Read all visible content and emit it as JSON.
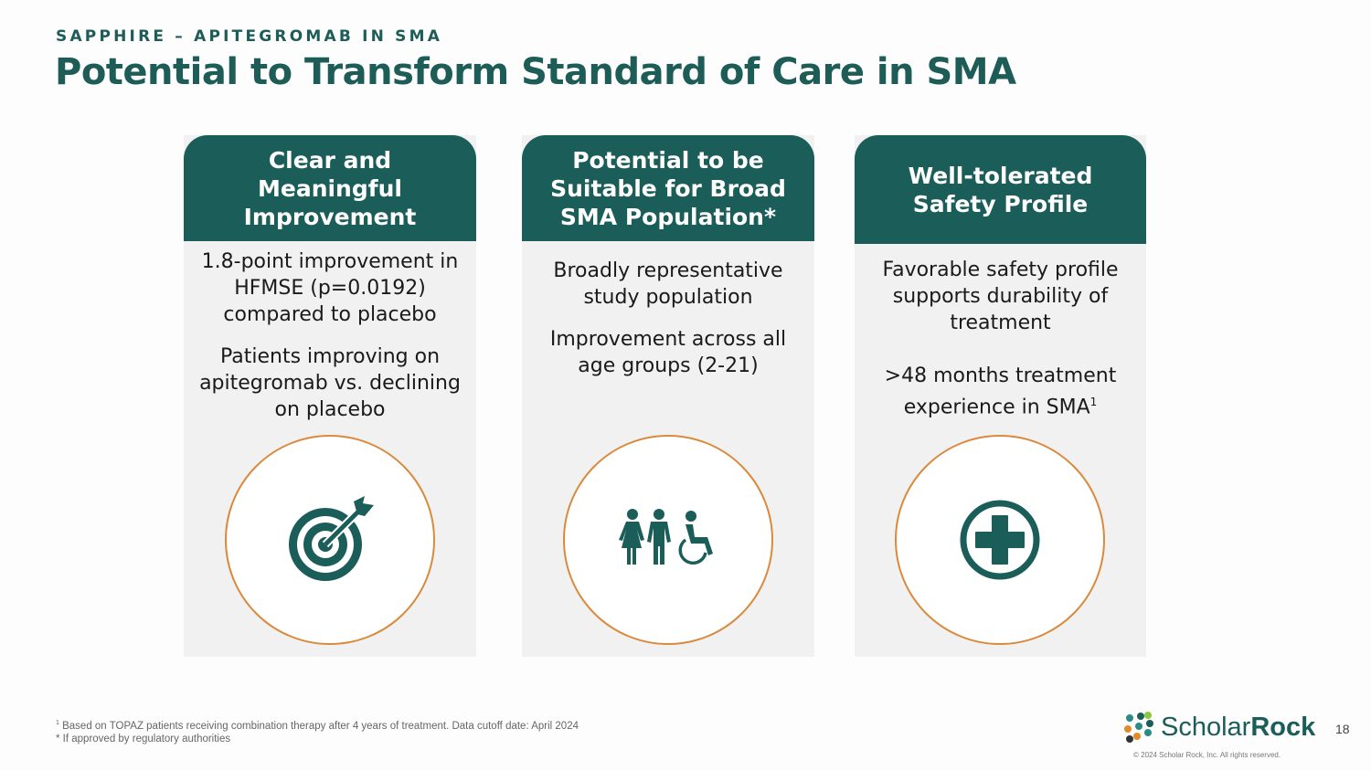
{
  "header": {
    "eyebrow": "SAPPHIRE – APITEGROMAB IN SMA",
    "title": "Potential to Transform Standard of Care in SMA"
  },
  "cards": [
    {
      "title": "Clear and Meaningful Improvement",
      "paragraphs": [
        "1.8-point improvement in HFMSE (p=0.0192) compared to placebo",
        "Patients improving on apitegromab vs. declining on placebo"
      ],
      "icon": "target-icon"
    },
    {
      "title": "Potential to be Suitable for Broad SMA Population*",
      "paragraphs": [
        "Broadly representative study population",
        "Improvement across all age groups (2-21)"
      ],
      "icon": "people-accessibility-icon"
    },
    {
      "title": "Well-tolerated Safety Profile",
      "paragraphs": [
        "Favorable safety profile supports durability of treatment",
        ">48 months treatment experience in SMA"
      ],
      "sup": "1",
      "icon": "medical-cross-icon"
    }
  ],
  "footnotes": {
    "note1_mark": "1",
    "note1": "Based on TOPAZ patients receiving combination therapy after 4 years of treatment. Data cutoff date: April 2024",
    "note2": "* If approved by regulatory authorities"
  },
  "brand": {
    "name_light": "Scholar",
    "name_bold": "Rock",
    "copyright": "© 2024 Scholar Rock, Inc. All rights reserved.",
    "page_number": "18"
  },
  "colors": {
    "teal": "#1b5d59",
    "orange": "#d98a3c",
    "card_bg": "#f1f1f1"
  }
}
